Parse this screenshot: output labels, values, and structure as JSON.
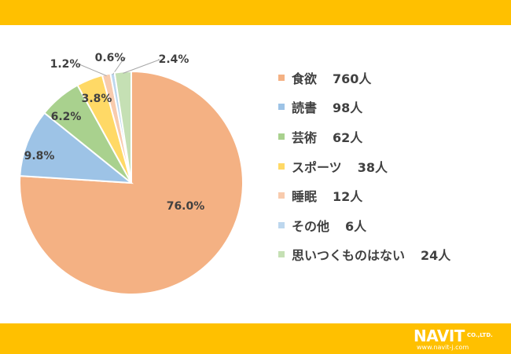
{
  "chart_data": {
    "type": "pie",
    "categories": [
      "食欲",
      "読書",
      "芸術",
      "スポーツ",
      "睡眠",
      "その他",
      "思いつくものはない"
    ],
    "counts": [
      "760人",
      "98人",
      "62人",
      "38人",
      "12人",
      "6人",
      "24人"
    ],
    "values": [
      76.0,
      9.8,
      6.2,
      3.8,
      1.2,
      0.6,
      2.4
    ],
    "value_labels": [
      "76.0%",
      "9.8%",
      "6.2%",
      "3.8%",
      "1.2%",
      "0.6%",
      "2.4%"
    ],
    "colors": [
      "#f4b183",
      "#9dc3e6",
      "#a9d18e",
      "#ffd966",
      "#f8cbad",
      "#bdd7ee",
      "#c5e0b4"
    ],
    "legend_position": "right",
    "start_angle": "12 o'clock, clockwise"
  },
  "banner": {
    "color": "#ffc000"
  },
  "logo": {
    "brand": "NAVIT",
    "suffix": "CO.,LTD.",
    "url": "www.navit-j.com"
  }
}
